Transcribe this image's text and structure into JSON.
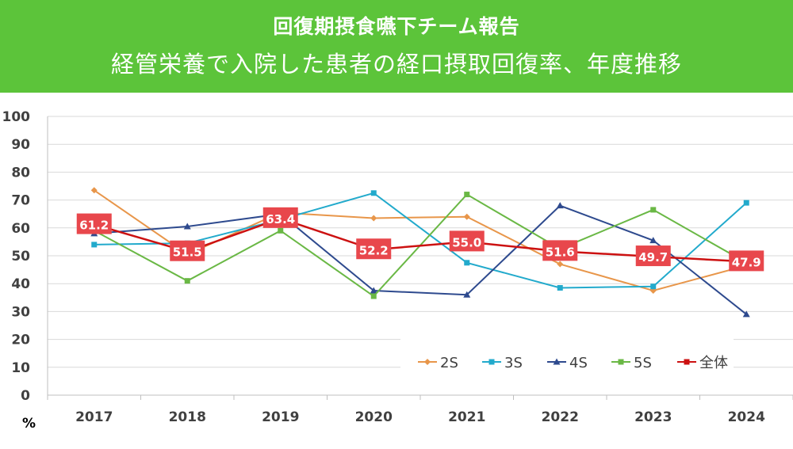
{
  "header": {
    "title": "回復期摂食嚥下チーム報告",
    "subtitle": "経管栄養で入院した患者の経口摂取回復率、年度推移",
    "background_color": "#5cc43a"
  },
  "chart_data": {
    "type": "line",
    "title": "回復期摂食嚥下チーム報告",
    "subtitle": "経管栄養で入院した患者の経口摂取回復率、年度推移",
    "xlabel": "",
    "ylabel": "%",
    "ylim": [
      0,
      100
    ],
    "yticks": [
      0,
      10,
      20,
      30,
      40,
      50,
      60,
      70,
      80,
      90,
      100
    ],
    "grid": true,
    "legend_position": "bottom-right",
    "categories": [
      "2017",
      "2018",
      "2019",
      "2020",
      "2021",
      "2022",
      "2023",
      "2024"
    ],
    "series": [
      {
        "name": "2S",
        "color": "#e8964a",
        "marker": "diamond",
        "values": [
          73.5,
          50.5,
          65.5,
          63.5,
          64.0,
          47.0,
          37.5,
          46.5
        ]
      },
      {
        "name": "3S",
        "color": "#22aacc",
        "marker": "square",
        "values": [
          54.0,
          54.5,
          63.0,
          72.5,
          47.5,
          38.5,
          39.0,
          69.0
        ]
      },
      {
        "name": "4S",
        "color": "#2e4a8e",
        "marker": "triangle",
        "values": [
          58.0,
          60.5,
          65.0,
          37.5,
          36.0,
          68.0,
          55.5,
          29.0
        ]
      },
      {
        "name": "5S",
        "color": "#6ab845",
        "marker": "square",
        "values": [
          59.0,
          41.0,
          59.0,
          35.5,
          72.0,
          52.5,
          66.5,
          47.5
        ]
      },
      {
        "name": "全体",
        "color": "#cc1111",
        "marker": "square",
        "values": [
          61.2,
          51.5,
          63.4,
          52.2,
          55.0,
          51.6,
          49.7,
          47.9
        ],
        "labels": [
          "61.2",
          "51.5",
          "63.4",
          "52.2",
          "55.0",
          "51.6",
          "49.7",
          "47.9"
        ]
      }
    ]
  }
}
